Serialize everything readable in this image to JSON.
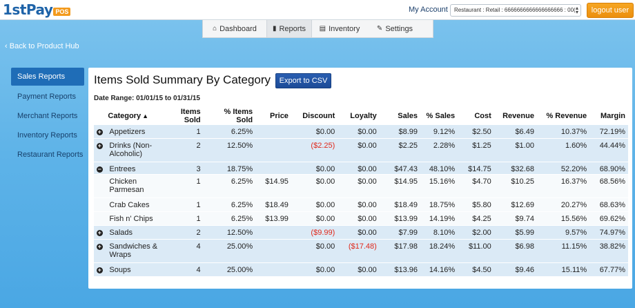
{
  "header": {
    "logo_main": "1stPay",
    "logo_sub": "POS",
    "my_account": "My Account",
    "merchant_select": "Restaurant : Retail : 6666666666666666666 : 00(",
    "logout": "logout user"
  },
  "nav": {
    "items": [
      {
        "label": "Dashboard",
        "icon": "home-icon",
        "glyph": "⌂"
      },
      {
        "label": "Reports",
        "icon": "bar-chart-icon",
        "glyph": "▮"
      },
      {
        "label": "Inventory",
        "icon": "table-icon",
        "glyph": "▤"
      },
      {
        "label": "Settings",
        "icon": "wrench-icon",
        "glyph": "✎"
      }
    ],
    "active": "Reports"
  },
  "back_link": "Back to Product Hub",
  "sidebar": {
    "items": [
      {
        "label": "Sales Reports",
        "active": true
      },
      {
        "label": "Payment Reports",
        "active": false
      },
      {
        "label": "Merchant Reports",
        "active": false
      },
      {
        "label": "Inventory Reports",
        "active": false
      },
      {
        "label": "Restaurant Reports",
        "active": false
      }
    ]
  },
  "report": {
    "title": "Items Sold Summary By Category",
    "export_label": "Export to CSV",
    "date_range": "Date Range: 01/01/15 to 01/31/15",
    "columns": [
      "Category",
      "Items Sold",
      "% Items Sold",
      "Price",
      "Discount",
      "Loyalty",
      "Sales",
      "% Sales",
      "Cost",
      "Revenue",
      "% Revenue",
      "Margin"
    ],
    "rows": [
      {
        "kind": "cat",
        "toggle": "+",
        "cells": [
          "Appetizers",
          "1",
          "6.25%",
          "",
          "$0.00",
          "$0.00",
          "$8.99",
          "9.12%",
          "$2.50",
          "$6.49",
          "10.37%",
          "72.19%"
        ]
      },
      {
        "kind": "cat",
        "toggle": "+",
        "cells": [
          "Drinks (Non-Alcoholic)",
          "2",
          "12.50%",
          "",
          "($2.25)",
          "$0.00",
          "$2.25",
          "2.28%",
          "$1.25",
          "$1.00",
          "1.60%",
          "44.44%"
        ]
      },
      {
        "kind": "cat",
        "toggle": "−",
        "cells": [
          "Entrees",
          "3",
          "18.75%",
          "",
          "$0.00",
          "$0.00",
          "$47.43",
          "48.10%",
          "$14.75",
          "$32.68",
          "52.20%",
          "68.90%"
        ]
      },
      {
        "kind": "sub",
        "toggle": "",
        "cells": [
          "Chicken Parmesan",
          "1",
          "6.25%",
          "$14.95",
          "$0.00",
          "$0.00",
          "$14.95",
          "15.16%",
          "$4.70",
          "$10.25",
          "16.37%",
          "68.56%"
        ]
      },
      {
        "kind": "sub",
        "toggle": "",
        "cells": [
          "Crab Cakes",
          "1",
          "6.25%",
          "$18.49",
          "$0.00",
          "$0.00",
          "$18.49",
          "18.75%",
          "$5.80",
          "$12.69",
          "20.27%",
          "68.63%"
        ]
      },
      {
        "kind": "sub",
        "toggle": "",
        "cells": [
          "Fish n' Chips",
          "1",
          "6.25%",
          "$13.99",
          "$0.00",
          "$0.00",
          "$13.99",
          "14.19%",
          "$4.25",
          "$9.74",
          "15.56%",
          "69.62%"
        ]
      },
      {
        "kind": "cat",
        "toggle": "+",
        "cells": [
          "Salads",
          "2",
          "12.50%",
          "",
          "($9.99)",
          "$0.00",
          "$7.99",
          "8.10%",
          "$2.00",
          "$5.99",
          "9.57%",
          "74.97%"
        ]
      },
      {
        "kind": "cat",
        "toggle": "+",
        "cells": [
          "Sandwiches & Wraps",
          "4",
          "25.00%",
          "",
          "$0.00",
          "($17.48)",
          "$17.98",
          "18.24%",
          "$11.00",
          "$6.98",
          "11.15%",
          "38.82%"
        ]
      },
      {
        "kind": "cat",
        "toggle": "+",
        "cells": [
          "Soups",
          "4",
          "25.00%",
          "",
          "$0.00",
          "$0.00",
          "$13.96",
          "14.16%",
          "$4.50",
          "$9.46",
          "15.11%",
          "67.77%"
        ]
      }
    ]
  },
  "colors": {
    "background": "#5eb3e8",
    "accent": "#1f6db7",
    "logout": "#f39a1c",
    "negative": "#e0271a",
    "row_category": "#dbeaf6"
  }
}
